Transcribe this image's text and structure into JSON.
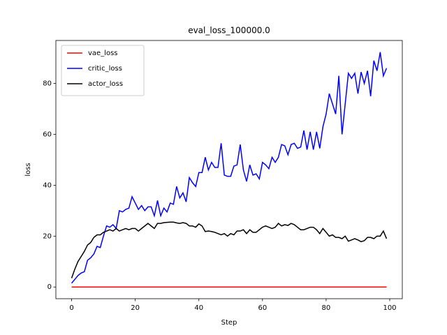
{
  "chart_data": {
    "type": "line",
    "title": "eval_loss_100000.0",
    "xlabel": "Step",
    "ylabel": "loss",
    "x": [
      0,
      1,
      2,
      3,
      4,
      5,
      6,
      7,
      8,
      9,
      10,
      11,
      12,
      13,
      14,
      15,
      16,
      17,
      18,
      19,
      20,
      21,
      22,
      23,
      24,
      25,
      26,
      27,
      28,
      29,
      30,
      31,
      32,
      33,
      34,
      35,
      36,
      37,
      38,
      39,
      40,
      41,
      42,
      43,
      44,
      45,
      46,
      47,
      48,
      49,
      50,
      51,
      52,
      53,
      54,
      55,
      56,
      57,
      58,
      59,
      60,
      61,
      62,
      63,
      64,
      65,
      66,
      67,
      68,
      69,
      70,
      71,
      72,
      73,
      74,
      75,
      76,
      77,
      78,
      79,
      80,
      81,
      82,
      83,
      84,
      85,
      86,
      87,
      88,
      89,
      90,
      91,
      92,
      93,
      94,
      95,
      96,
      97,
      98,
      99
    ],
    "series": [
      {
        "name": "vae_loss",
        "color": "#ff0000",
        "values": [
          0,
          0,
          0,
          0,
          0,
          0,
          0,
          0,
          0,
          0,
          0,
          0,
          0,
          0,
          0,
          0,
          0,
          0,
          0,
          0,
          0,
          0,
          0,
          0,
          0,
          0,
          0,
          0,
          0,
          0,
          0,
          0,
          0,
          0,
          0,
          0,
          0,
          0,
          0,
          0,
          0,
          0,
          0,
          0,
          0,
          0,
          0,
          0,
          0,
          0,
          0,
          0,
          0,
          0,
          0,
          0,
          0,
          0,
          0,
          0,
          0,
          0,
          0,
          0,
          0,
          0,
          0,
          0,
          0,
          0,
          0,
          0,
          0,
          0,
          0,
          0,
          0,
          0,
          0,
          0,
          0,
          0,
          0,
          0,
          0,
          0,
          0,
          0,
          0,
          0,
          0,
          0,
          0,
          0,
          0,
          0,
          0,
          0,
          0,
          0
        ]
      },
      {
        "name": "critic_loss",
        "color": "#0000ff",
        "values": [
          1.5,
          3,
          4.5,
          5.5,
          6,
          10.5,
          11.5,
          13,
          16,
          15.5,
          20,
          24,
          23.5,
          24.5,
          23,
          30,
          29.5,
          30.5,
          31,
          35.5,
          33,
          30.5,
          32,
          30,
          31.5,
          31.5,
          28,
          34,
          28,
          31,
          29.5,
          33,
          32.5,
          39.5,
          35,
          37,
          33.5,
          43,
          41,
          39.5,
          45,
          45,
          51,
          46,
          49,
          47,
          47,
          56.5,
          44,
          43.5,
          43.5,
          47.5,
          48,
          56,
          46,
          41.5,
          48,
          44,
          44.5,
          42.5,
          49,
          48,
          46.5,
          51,
          49,
          51,
          56,
          55.5,
          52,
          56,
          56.5,
          54.5,
          55,
          61.5,
          54,
          61,
          54,
          61,
          54.5,
          63,
          68,
          76,
          72,
          68,
          83,
          60,
          72,
          84,
          82,
          84,
          76,
          84.5,
          80,
          85,
          75,
          89,
          85,
          92.3,
          83,
          86
        ]
      },
      {
        "name": "actor_loss",
        "color": "#000000",
        "values": [
          3.5,
          7,
          10,
          12,
          14,
          16.5,
          17.5,
          19.5,
          20.5,
          20.5,
          21.5,
          22,
          22.5,
          22,
          23,
          22,
          22.5,
          23,
          22.5,
          23,
          23,
          22,
          23,
          24,
          25,
          24,
          23,
          25,
          25,
          25.3,
          25.4,
          25.5,
          25.5,
          25.2,
          25,
          25.3,
          25,
          24,
          24,
          23.5,
          24.8,
          24,
          21.8,
          22,
          21.8,
          21.5,
          21,
          20.5,
          21,
          20,
          21,
          20.5,
          22,
          22,
          22.5,
          21,
          22.5,
          21.5,
          21.5,
          22.5,
          23.5,
          24,
          23.5,
          23,
          23.5,
          25,
          24,
          24.5,
          24.2,
          25,
          24.5,
          23.5,
          22.5,
          22.5,
          23,
          23.5,
          23.5,
          22.5,
          21,
          23,
          21.5,
          20,
          20.5,
          19.5,
          19.5,
          19,
          20,
          18,
          18.5,
          19,
          18.5,
          17.8,
          18.2,
          19.5,
          19.5,
          19,
          20,
          20,
          22,
          19
        ]
      }
    ],
    "xlim": [
      -4.95,
      103.95
    ],
    "ylim": [
      -4.6,
      96.9
    ],
    "xticks": [
      0,
      20,
      40,
      60,
      80,
      100
    ],
    "yticks": [
      0,
      20,
      40,
      60,
      80
    ],
    "legend": "upper left"
  }
}
